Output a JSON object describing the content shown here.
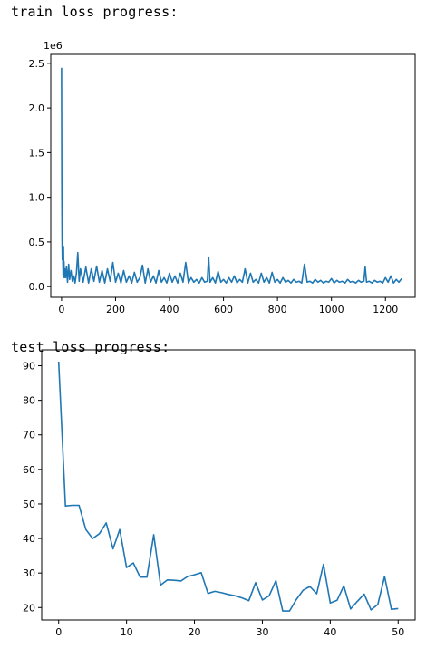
{
  "captions": {
    "train": "train loss progress:",
    "test": "test loss progress:"
  },
  "colors": {
    "series": "#1f77b4"
  },
  "chart_data": [
    {
      "type": "line",
      "title": "",
      "xlabel": "",
      "ylabel": "",
      "offset_text": "1e6",
      "xlim": [
        -40,
        1310
      ],
      "ylim": [
        -0.12,
        2.6
      ],
      "y_scale_factor": 1000000,
      "xticks": [
        0,
        200,
        400,
        600,
        800,
        1000,
        1200
      ],
      "xtick_labels": [
        "0",
        "200",
        "400",
        "600",
        "800",
        "1000",
        "1200"
      ],
      "yticks": [
        0.0,
        0.5,
        1.0,
        1.5,
        2.0,
        2.5
      ],
      "ytick_labels": [
        "0.0",
        "0.5",
        "1.0",
        "1.5",
        "2.0",
        "2.5"
      ],
      "series": [
        {
          "x": [
            0,
            1,
            2,
            3,
            4,
            5,
            6,
            7,
            8,
            9,
            10,
            12,
            15,
            18,
            22,
            26,
            30,
            35,
            40,
            45,
            50,
            55,
            60,
            65,
            70,
            80,
            90,
            100,
            110,
            120,
            130,
            140,
            150,
            160,
            170,
            180,
            190,
            200,
            210,
            220,
            230,
            240,
            250,
            260,
            270,
            280,
            290,
            300,
            310,
            320,
            330,
            340,
            350,
            360,
            370,
            380,
            390,
            400,
            410,
            420,
            430,
            440,
            450,
            460,
            470,
            480,
            490,
            500,
            510,
            520,
            530,
            540,
            545,
            550,
            560,
            570,
            580,
            590,
            600,
            610,
            620,
            630,
            640,
            650,
            660,
            670,
            680,
            690,
            700,
            710,
            720,
            730,
            740,
            750,
            760,
            770,
            780,
            790,
            800,
            810,
            820,
            830,
            840,
            850,
            860,
            870,
            880,
            890,
            900,
            910,
            920,
            930,
            940,
            950,
            960,
            970,
            980,
            990,
            1000,
            1010,
            1020,
            1030,
            1040,
            1050,
            1060,
            1070,
            1080,
            1090,
            1100,
            1110,
            1120,
            1125,
            1130,
            1140,
            1150,
            1160,
            1170,
            1180,
            1190,
            1200,
            1210,
            1220,
            1230,
            1240,
            1250,
            1260
          ],
          "values": [
            2.45,
            1.1,
            0.5,
            0.3,
            0.67,
            0.25,
            0.12,
            0.45,
            0.15,
            0.28,
            0.1,
            0.2,
            0.1,
            0.22,
            0.05,
            0.25,
            0.08,
            0.18,
            0.06,
            0.12,
            0.04,
            0.15,
            0.38,
            0.06,
            0.2,
            0.05,
            0.22,
            0.04,
            0.2,
            0.06,
            0.23,
            0.05,
            0.18,
            0.04,
            0.2,
            0.06,
            0.27,
            0.05,
            0.15,
            0.04,
            0.18,
            0.05,
            0.12,
            0.04,
            0.16,
            0.05,
            0.1,
            0.24,
            0.04,
            0.2,
            0.05,
            0.12,
            0.04,
            0.18,
            0.05,
            0.1,
            0.04,
            0.15,
            0.05,
            0.12,
            0.04,
            0.15,
            0.05,
            0.27,
            0.04,
            0.1,
            0.05,
            0.08,
            0.04,
            0.1,
            0.05,
            0.06,
            0.33,
            0.05,
            0.1,
            0.04,
            0.17,
            0.05,
            0.08,
            0.04,
            0.1,
            0.05,
            0.12,
            0.04,
            0.08,
            0.05,
            0.2,
            0.04,
            0.15,
            0.05,
            0.08,
            0.04,
            0.15,
            0.05,
            0.1,
            0.04,
            0.16,
            0.05,
            0.08,
            0.04,
            0.1,
            0.05,
            0.07,
            0.04,
            0.08,
            0.05,
            0.06,
            0.04,
            0.25,
            0.05,
            0.06,
            0.04,
            0.08,
            0.05,
            0.07,
            0.04,
            0.06,
            0.05,
            0.09,
            0.04,
            0.07,
            0.05,
            0.06,
            0.04,
            0.08,
            0.05,
            0.06,
            0.04,
            0.07,
            0.05,
            0.06,
            0.22,
            0.05,
            0.06,
            0.04,
            0.07,
            0.05,
            0.06,
            0.04,
            0.1,
            0.05,
            0.12,
            0.04,
            0.08,
            0.05,
            0.09
          ]
        }
      ]
    },
    {
      "type": "line",
      "title": "",
      "xlabel": "",
      "ylabel": "",
      "xlim": [
        -2.5,
        52.5
      ],
      "ylim": [
        16.4,
        94.6
      ],
      "xticks": [
        0,
        10,
        20,
        30,
        40,
        50
      ],
      "xtick_labels": [
        "0",
        "10",
        "20",
        "30",
        "40",
        "50"
      ],
      "yticks": [
        20,
        30,
        40,
        50,
        60,
        70,
        80,
        90
      ],
      "ytick_labels": [
        "20",
        "30",
        "40",
        "50",
        "60",
        "70",
        "80",
        "90"
      ],
      "series": [
        {
          "x": [
            0,
            1,
            2,
            3,
            4,
            5,
            6,
            7,
            8,
            9,
            10,
            11,
            12,
            13,
            14,
            15,
            16,
            17,
            18,
            19,
            20,
            21,
            22,
            23,
            24,
            25,
            26,
            27,
            28,
            29,
            30,
            31,
            32,
            33,
            34,
            35,
            36,
            37,
            38,
            39,
            40,
            41,
            42,
            43,
            44,
            45,
            46,
            47,
            48,
            49,
            50
          ],
          "values": [
            91.2,
            49.4,
            49.6,
            49.6,
            42.6,
            40.0,
            41.4,
            44.5,
            37.0,
            42.6,
            31.6,
            32.9,
            28.8,
            28.8,
            41.1,
            26.5,
            28.0,
            27.9,
            27.7,
            29.0,
            29.5,
            30.1,
            24.1,
            24.7,
            24.3,
            23.8,
            23.4,
            22.8,
            22.0,
            27.2,
            22.2,
            23.4,
            27.8,
            19.0,
            19.0,
            22.3,
            25.0,
            26.1,
            24.0,
            32.5,
            21.3,
            22.1,
            26.3,
            19.6,
            21.8,
            23.9,
            19.3,
            20.9,
            29.0,
            19.5,
            19.7
          ]
        }
      ]
    }
  ]
}
